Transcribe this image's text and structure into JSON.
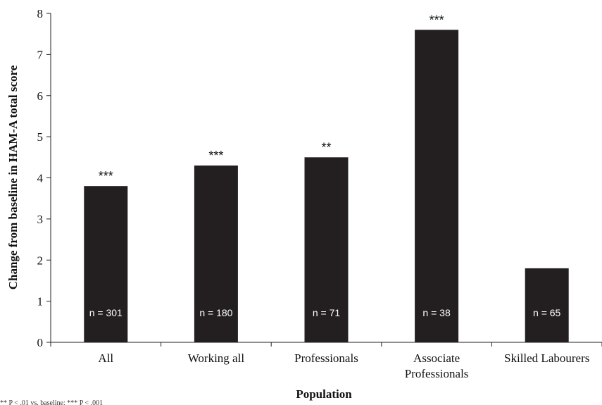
{
  "chart_data": {
    "type": "bar",
    "categories": [
      [
        "All"
      ],
      [
        "Working all"
      ],
      [
        "Professionals"
      ],
      [
        "Associate",
        "Professionals"
      ],
      [
        "Skilled Labourers"
      ]
    ],
    "values": [
      3.8,
      4.3,
      4.5,
      7.6,
      1.8
    ],
    "significance": [
      "***",
      "***",
      "**",
      "***",
      ""
    ],
    "sample_sizes": [
      "n = 301",
      "n = 180",
      "n = 71",
      "n = 38",
      "n = 65"
    ],
    "xlabel": "Population",
    "ylabel": "Change from baseline in HAM-A total score",
    "ylim": [
      0,
      8
    ],
    "yticks": [
      0,
      1,
      2,
      3,
      4,
      5,
      6,
      7,
      8
    ],
    "grid": false,
    "bar_color": "#231f20",
    "footnote": "** P < .01 vs. baseline; *** P < .001"
  }
}
